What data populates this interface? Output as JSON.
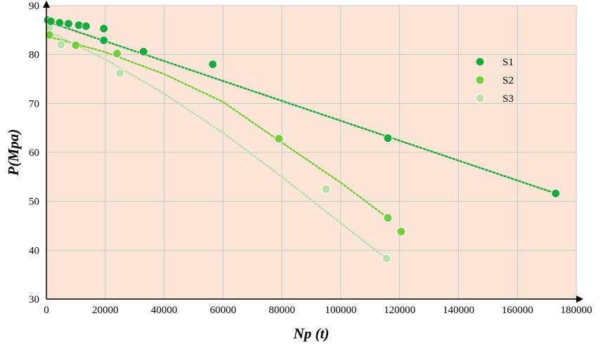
{
  "chart_data": {
    "type": "scatter",
    "xlabel": "Np (t)",
    "ylabel": "P(Mpa)",
    "xlim": [
      0,
      180000
    ],
    "ylim": [
      30,
      90
    ],
    "x_ticks": [
      0,
      20000,
      40000,
      60000,
      80000,
      100000,
      120000,
      140000,
      160000,
      180000
    ],
    "x_tick_labels": [
      "0",
      "20000",
      "40000",
      "60000",
      "80000",
      "100000",
      "120000",
      "140000",
      "160000",
      "180000"
    ],
    "y_ticks": [
      30,
      40,
      50,
      60,
      70,
      80,
      90
    ],
    "y_tick_labels": [
      "30",
      "40",
      "50",
      "60",
      "70",
      "80",
      "90"
    ],
    "grid": true,
    "legend_position": "right",
    "background": "#fbe5d6",
    "series": [
      {
        "name": "S1",
        "color": "#1aaa3c",
        "trendline": "linear",
        "points": [
          [
            500,
            87.0
          ],
          [
            1500,
            86.8
          ],
          [
            4500,
            86.5
          ],
          [
            7500,
            86.3
          ],
          [
            11000,
            86.0
          ],
          [
            13500,
            85.8
          ],
          [
            19500,
            85.3
          ],
          [
            19500,
            82.9
          ],
          [
            33000,
            80.6
          ],
          [
            56500,
            78.0
          ],
          [
            116000,
            62.9
          ],
          [
            173000,
            51.6
          ]
        ],
        "trend": [
          [
            0,
            86.8
          ],
          [
            173000,
            51.6
          ]
        ]
      },
      {
        "name": "S2",
        "color": "#77cc3c",
        "trendline": "polynomial",
        "points": [
          [
            1000,
            84.0
          ],
          [
            10000,
            81.9
          ],
          [
            24000,
            80.2
          ],
          [
            79000,
            62.8
          ],
          [
            116000,
            46.6
          ],
          [
            120500,
            43.8
          ]
        ],
        "trend": [
          [
            0,
            83.8
          ],
          [
            20000,
            80.5
          ],
          [
            40000,
            76.0
          ],
          [
            60000,
            70.3
          ],
          [
            80000,
            62.0
          ],
          [
            100000,
            53.8
          ],
          [
            116000,
            46.6
          ]
        ]
      },
      {
        "name": "S3",
        "color": "#b9e0a8",
        "trendline": "polynomial",
        "points": [
          [
            1000,
            85.6
          ],
          [
            5000,
            82.0
          ],
          [
            25000,
            76.2
          ],
          [
            95000,
            52.5
          ],
          [
            115500,
            38.3
          ]
        ],
        "trend": [
          [
            0,
            85.0
          ],
          [
            20000,
            79.0
          ],
          [
            40000,
            72.0
          ],
          [
            60000,
            64.0
          ],
          [
            80000,
            55.0
          ],
          [
            100000,
            45.5
          ],
          [
            115500,
            38.3
          ]
        ]
      }
    ]
  }
}
